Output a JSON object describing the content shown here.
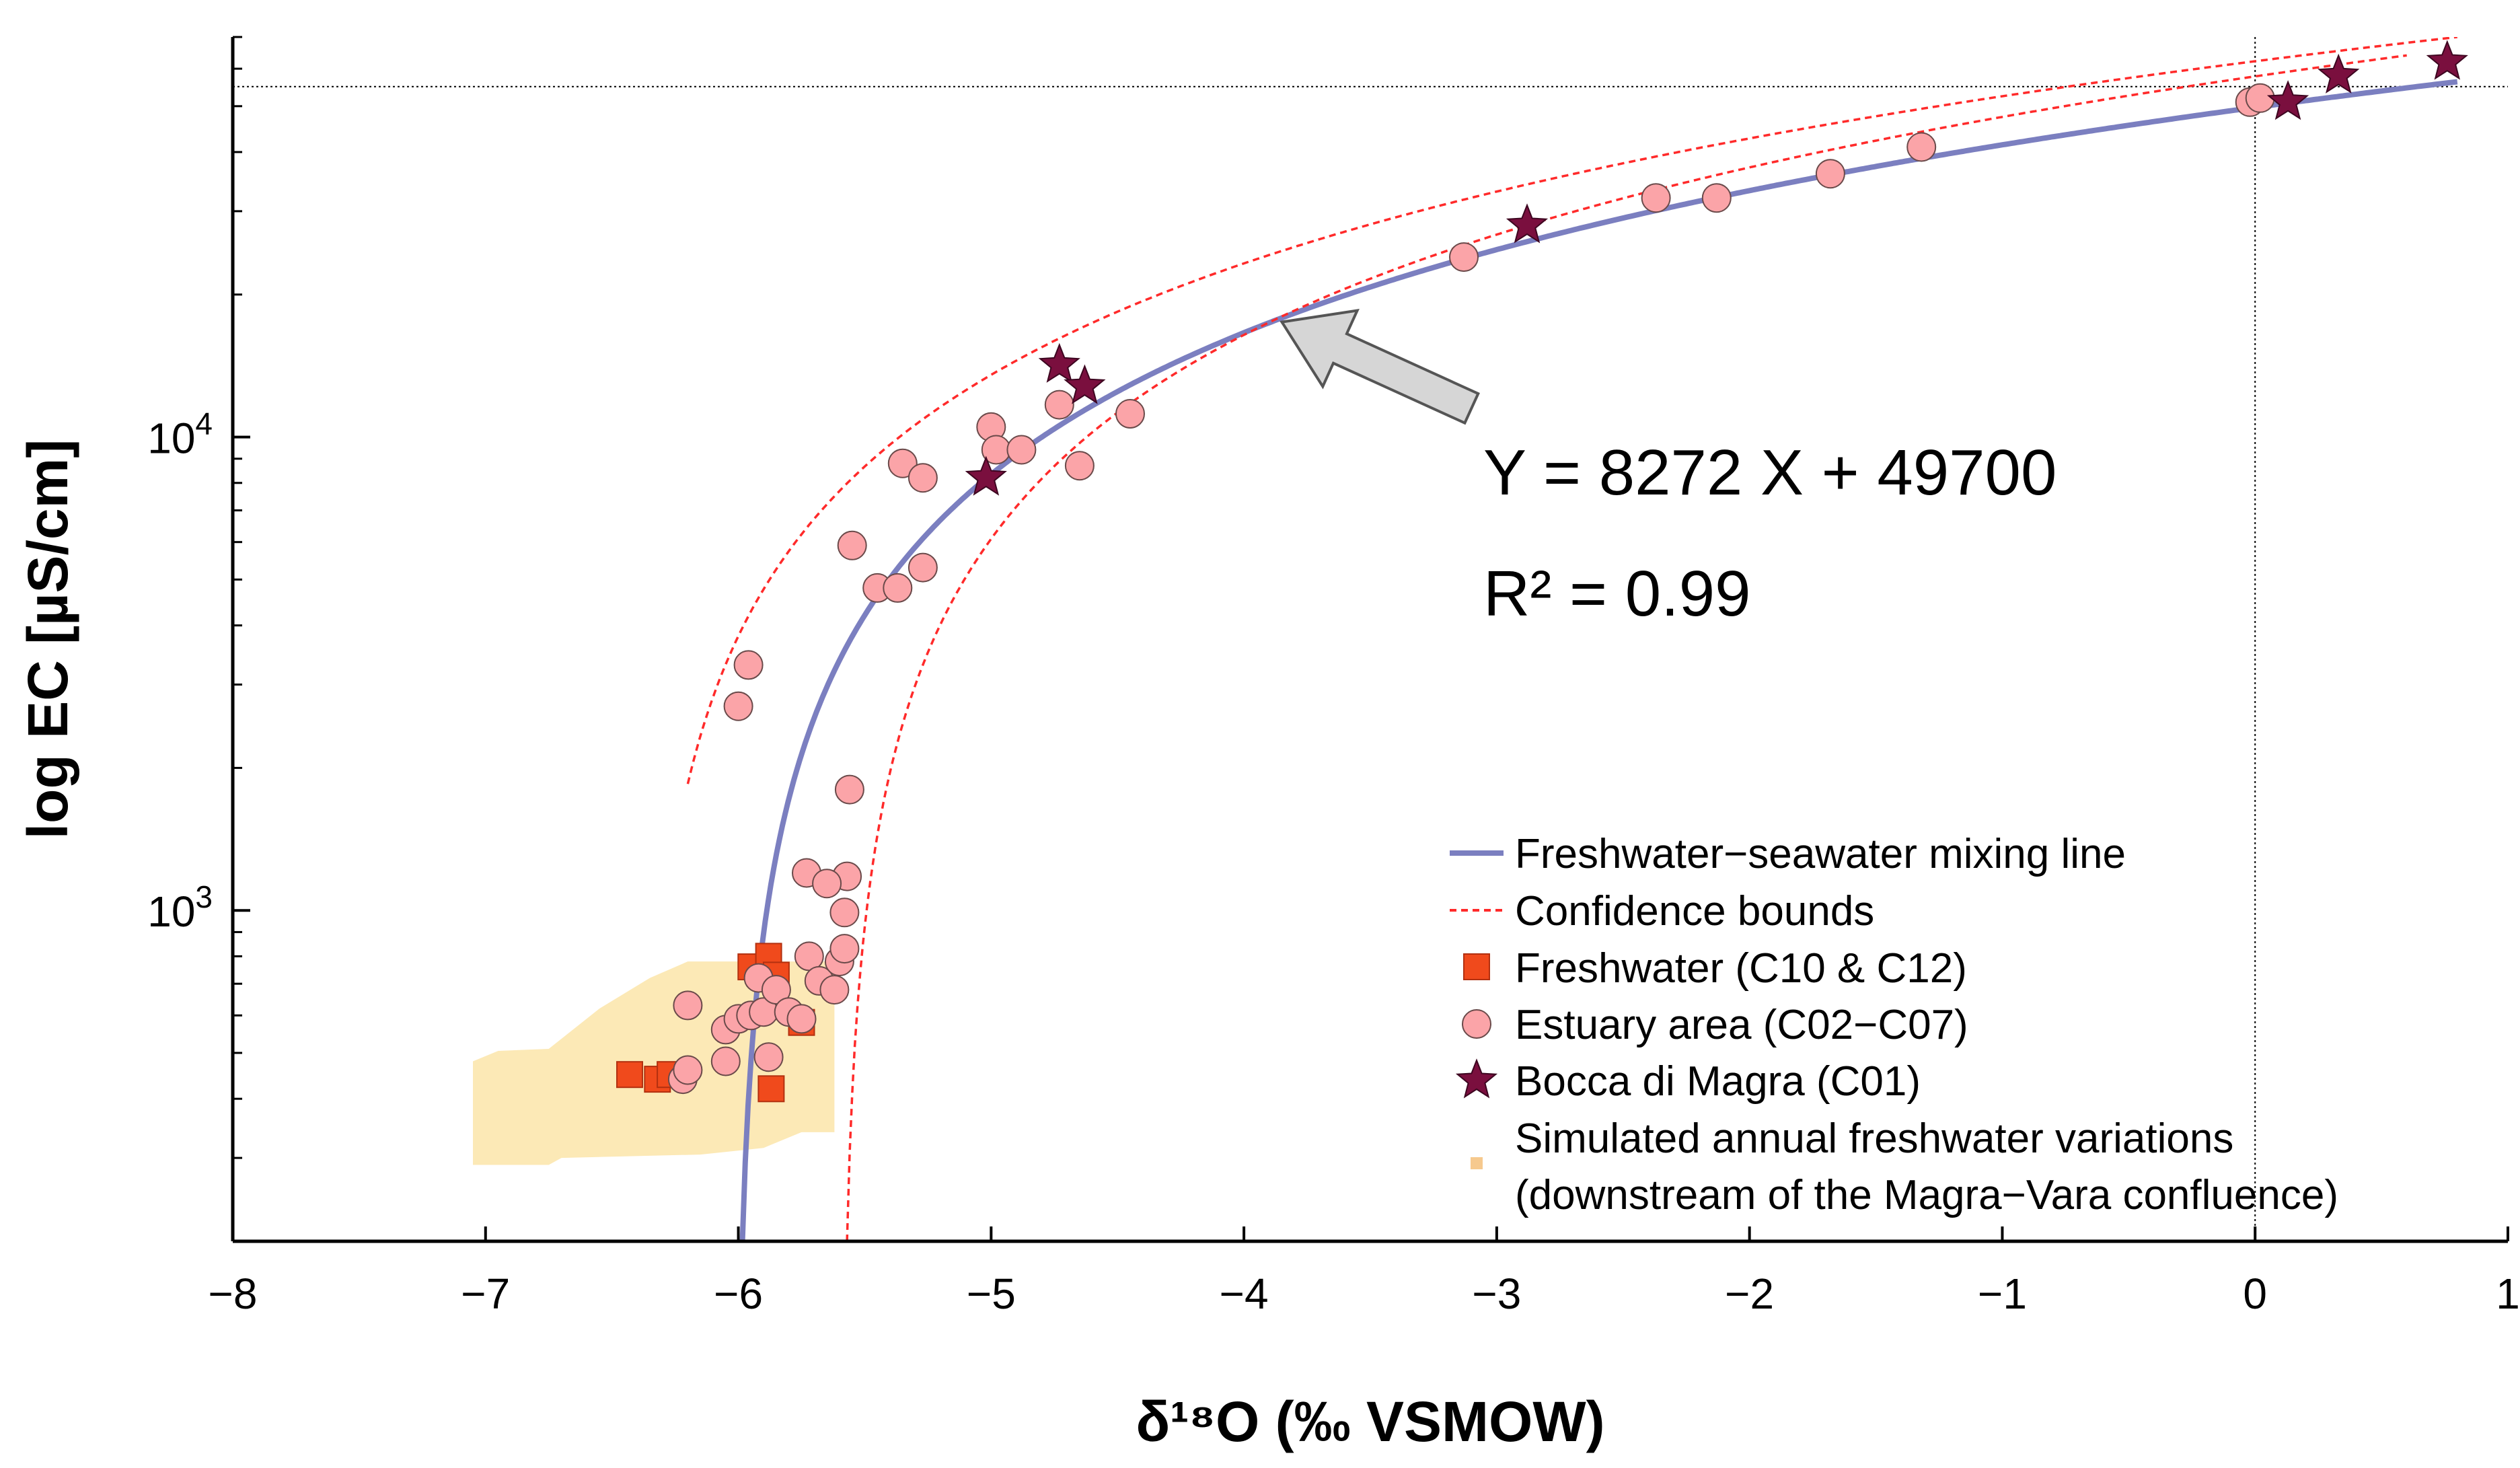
{
  "chart_data": {
    "type": "scatter",
    "xlabel": "δ¹⁸O (‰ VSMOW)",
    "ylabel": "log EC [µS/cm]",
    "xlim": [
      -8,
      1
    ],
    "ylim": [
      200,
      70000
    ],
    "yscale": "log",
    "x_ticks": [
      -8,
      -7,
      -6,
      -5,
      -4,
      -3,
      -2,
      -1,
      0,
      1
    ],
    "x_tick_labels": [
      "−8",
      "−7",
      "−6",
      "−5",
      "−4",
      "−3",
      "−2",
      "−1",
      "0",
      "1"
    ],
    "y_ticks": [
      {
        "value": 1000,
        "base": "10",
        "exp": "3"
      },
      {
        "value": 10000,
        "base": "10",
        "exp": "4"
      }
    ],
    "reference_lines": {
      "x_zero": 0,
      "y_seawater": 55000
    },
    "annotations": {
      "equation": "Y = 8272 X + 49700",
      "r_squared": "R² = 0.99",
      "arrow_from": [
        -3.1,
        11500
      ],
      "arrow_to": [
        -3.85,
        17500
      ]
    },
    "mixing_line": {
      "name": "Freshwater−seawater mixing line",
      "slope": 8272,
      "intercept": 49700,
      "color": "#7b7fc0"
    },
    "confidence_bounds": {
      "name": "Confidence bounds",
      "color": "#ff2a2a",
      "upper": {
        "x0": -6.2,
        "x_end": 0.8,
        "ec0": 1850,
        "ec_end": 70000
      },
      "lower": {
        "x0": -5.57,
        "x_end": 0.6,
        "ec0": 200,
        "ec_end": 64000
      }
    },
    "simulated_region": {
      "name": "Simulated annual freshwater variations",
      "name_line2": "(downstream of the Magra−Vara confluence)",
      "color": "#fce9b6",
      "polygon": [
        [
          -7.05,
          290
        ],
        [
          -7.05,
          480
        ],
        [
          -6.95,
          505
        ],
        [
          -6.75,
          510
        ],
        [
          -6.55,
          620
        ],
        [
          -6.35,
          720
        ],
        [
          -6.2,
          780
        ],
        [
          -5.62,
          780
        ],
        [
          -5.62,
          340
        ],
        [
          -5.75,
          340
        ],
        [
          -5.9,
          315
        ],
        [
          -6.15,
          305
        ],
        [
          -6.7,
          300
        ],
        [
          -6.75,
          290
        ]
      ]
    },
    "series": [
      {
        "name": "Freshwater (C10 & C12)",
        "marker": "square",
        "color": "#f04a1c",
        "points": [
          [
            -6.43,
            450
          ],
          [
            -6.32,
            440
          ],
          [
            -6.27,
            450
          ],
          [
            -5.95,
            760
          ],
          [
            -5.88,
            800
          ],
          [
            -5.85,
            730
          ],
          [
            -5.75,
            580
          ],
          [
            -5.87,
            420
          ]
        ]
      },
      {
        "name": "Estuary area (C02−C07)",
        "marker": "circle",
        "color": "#fba4a8",
        "points": [
          [
            -6.2,
            630
          ],
          [
            -6.22,
            440
          ],
          [
            -6.2,
            460
          ],
          [
            -6.05,
            560
          ],
          [
            -6.0,
            590
          ],
          [
            -6.05,
            480
          ],
          [
            -5.95,
            600
          ],
          [
            -5.9,
            610
          ],
          [
            -5.88,
            490
          ],
          [
            -5.92,
            720
          ],
          [
            -5.85,
            680
          ],
          [
            -5.8,
            610
          ],
          [
            -5.75,
            590
          ],
          [
            -5.72,
            800
          ],
          [
            -5.68,
            710
          ],
          [
            -5.62,
            680
          ],
          [
            -5.6,
            780
          ],
          [
            -5.58,
            830
          ],
          [
            -5.58,
            990
          ],
          [
            -5.57,
            1180
          ],
          [
            -5.73,
            1200
          ],
          [
            -5.65,
            1140
          ],
          [
            -5.56,
            1800
          ],
          [
            -6.0,
            2700
          ],
          [
            -5.96,
            3300
          ],
          [
            -5.45,
            4800
          ],
          [
            -5.37,
            4800
          ],
          [
            -5.27,
            5300
          ],
          [
            -5.55,
            5900
          ],
          [
            -5.35,
            8800
          ],
          [
            -5.27,
            8200
          ],
          [
            -5.0,
            10500
          ],
          [
            -4.98,
            9400
          ],
          [
            -4.88,
            9400
          ],
          [
            -4.73,
            11700
          ],
          [
            -4.65,
            8700
          ],
          [
            -4.45,
            11200
          ],
          [
            -3.13,
            24000
          ],
          [
            -2.37,
            32000
          ],
          [
            -2.13,
            32000
          ],
          [
            -1.68,
            36000
          ],
          [
            -1.32,
            41000
          ],
          [
            -0.02,
            51000
          ],
          [
            0.02,
            52000
          ]
        ]
      },
      {
        "name": "Bocca di Magra (C01)",
        "marker": "star",
        "color": "#7a0f3e",
        "points": [
          [
            -5.02,
            8200
          ],
          [
            -4.73,
            14200
          ],
          [
            -4.63,
            12800
          ],
          [
            -2.88,
            28000
          ],
          [
            0.13,
            51000
          ],
          [
            0.33,
            58000
          ],
          [
            0.76,
            62000
          ]
        ]
      }
    ]
  }
}
